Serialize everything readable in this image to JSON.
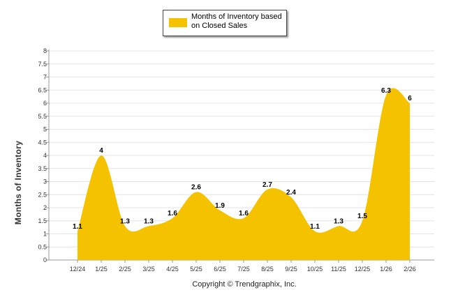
{
  "chart_data": {
    "type": "area",
    "categories": [
      "12/24",
      "1/25",
      "2/25",
      "3/25",
      "4/25",
      "5/25",
      "6/25",
      "7/25",
      "8/25",
      "9/25",
      "10/25",
      "11/25",
      "12/25",
      "1/26",
      "2/26"
    ],
    "series": [
      {
        "name": "Months of Inventory based on Closed Sales",
        "values": [
          1.1,
          4,
          1.3,
          1.3,
          1.6,
          2.6,
          1.9,
          1.6,
          2.7,
          2.4,
          1.1,
          1.3,
          1.5,
          6.3,
          6
        ],
        "data_labels": [
          "1.1",
          "4",
          "1.3",
          "1.3",
          "1.6",
          "2.6",
          "1.9",
          "1.6",
          "2.7",
          "2.4",
          "1.1",
          "1.3",
          "1.5",
          "6.3",
          "6"
        ]
      }
    ],
    "ylabel": "Months of Inventory",
    "ylim": [
      0,
      8
    ],
    "yticks": [
      "0",
      "0.5",
      "1",
      "1.5",
      "2",
      "2.5",
      "3",
      "3.5",
      "4",
      "4.5",
      "5",
      "5.5",
      "6",
      "6.5",
      "7",
      "7.5",
      "8"
    ],
    "legend": "top-center",
    "grid": true,
    "color": "#F5C200"
  },
  "legend_label": "Months of Inventory based on Closed Sales",
  "footer": "Copyright © Trendgraphix, Inc."
}
